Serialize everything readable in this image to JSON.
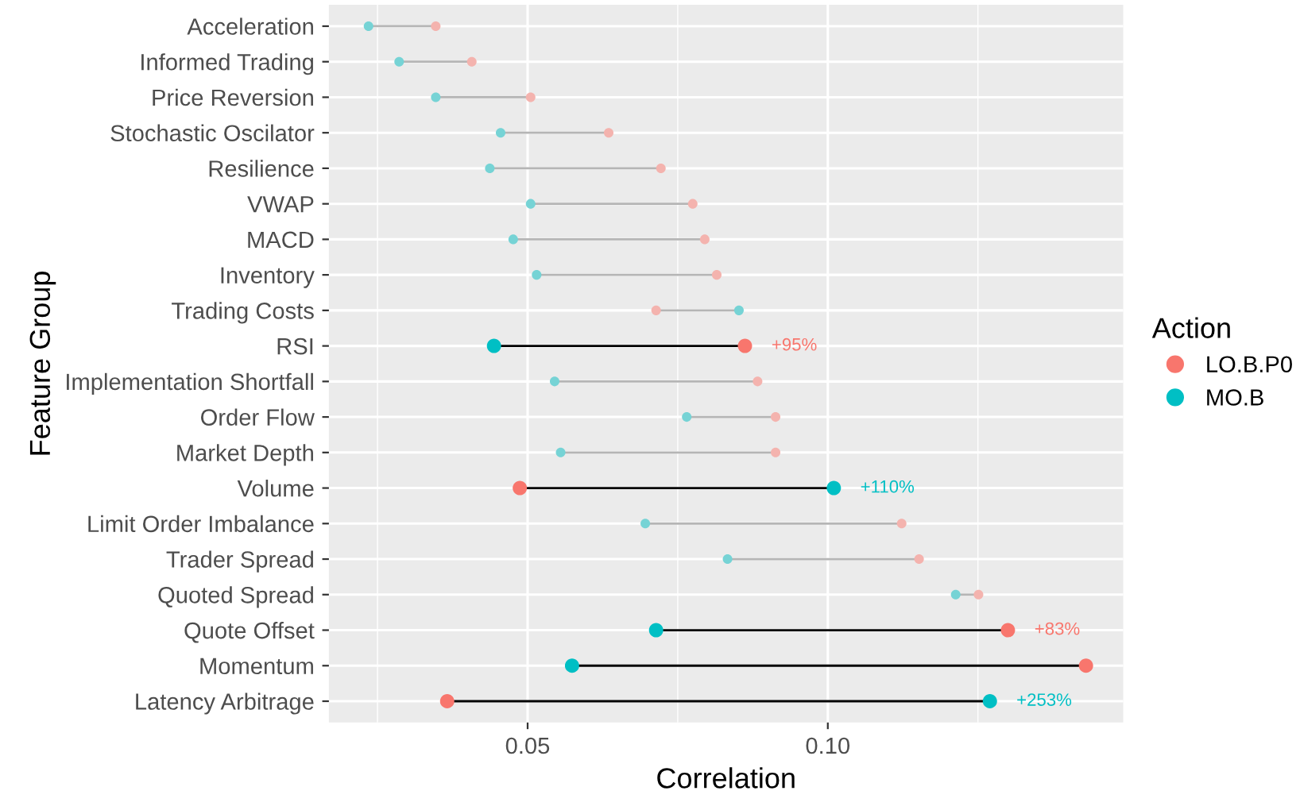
{
  "chart_data": {
    "type": "scatter",
    "xlabel": "Correlation",
    "ylabel": "Feature Group",
    "legend_title": "Action",
    "legend": "right",
    "grid": true,
    "marker": "circle",
    "orientation": "horizontal",
    "categories": [
      "Acceleration",
      "Informed Trading",
      "Price Reversion",
      "Stochastic Oscilator",
      "Resilience",
      "VWAP",
      "MACD",
      "Inventory",
      "Trading Costs",
      "RSI",
      "Implementation Shortfall",
      "Order Flow",
      "Market Depth",
      "Volume",
      "Limit Order Imbalance",
      "Trader Spread",
      "Quoted Spread",
      "Quote Offset",
      "Momentum",
      "Latency Arbitrage"
    ],
    "series": [
      {
        "name": "LO.B.P0",
        "color": "#f8766d",
        "values": [
          0.0347,
          0.0407,
          0.0505,
          0.0635,
          0.0722,
          0.0775,
          0.0795,
          0.0815,
          0.0714,
          0.0862,
          0.0883,
          0.0913,
          0.0913,
          0.0487,
          0.1123,
          0.1152,
          0.1251,
          0.13,
          0.143,
          0.0366
        ],
        "sizes": [
          0.45,
          0.45,
          0.45,
          0.45,
          0.45,
          0.45,
          0.45,
          0.45,
          0.45,
          1,
          0.45,
          0.45,
          0.45,
          1,
          0.45,
          0.45,
          0.45,
          1,
          1,
          1
        ],
        "colors": [
          "#f4b3ae",
          "#f4b3ae",
          "#f4b3ae",
          "#f4b3ae",
          "#f4b3ae",
          "#f4b3ae",
          "#f4b3ae",
          "#f4b3ae",
          "#f4b3ae",
          "#f8766d",
          "#f4b3ae",
          "#f4b3ae",
          "#f4b3ae",
          "#f8766d",
          "#f4b3ae",
          "#f4b3ae",
          "#f4b3ae",
          "#f8766d",
          "#f8766d",
          "#f8766d"
        ]
      },
      {
        "name": "MO.B",
        "color": "#00bfc4",
        "values": [
          0.0235,
          0.0286,
          0.0347,
          0.0455,
          0.0437,
          0.0505,
          0.0476,
          0.0515,
          0.0852,
          0.0444,
          0.0545,
          0.0765,
          0.0555,
          0.101,
          0.0696,
          0.0833,
          0.1213,
          0.0714,
          0.0574,
          0.127
        ],
        "sizes": [
          0.45,
          0.45,
          0.45,
          0.45,
          0.45,
          0.45,
          0.45,
          0.45,
          0.45,
          1,
          0.45,
          0.45,
          0.45,
          1,
          0.45,
          0.45,
          0.45,
          1,
          1,
          1
        ],
        "colors": [
          "#76d3d5",
          "#76d3d5",
          "#76d3d5",
          "#76d3d5",
          "#76d3d5",
          "#76d3d5",
          "#76d3d5",
          "#76d3d5",
          "#76d3d5",
          "#00bfc4",
          "#76d3d5",
          "#76d3d5",
          "#76d3d5",
          "#00bfc4",
          "#76d3d5",
          "#76d3d5",
          "#76d3d5",
          "#00bfc4",
          "#00bfc4",
          "#00bfc4"
        ]
      }
    ],
    "xlim": [
      0.0169,
      0.1492
    ],
    "xticks": [
      {
        "value": 0.05,
        "label": "0.05"
      },
      {
        "value": 0.1,
        "label": "0.10"
      }
    ],
    "annotations": [
      {
        "text": "+95%",
        "x": 0.0862,
        "y": "RSI"
      },
      {
        "text": "+110%",
        "x": 0.101,
        "y": "Volume"
      },
      {
        "text": "+83%",
        "x": 0.13,
        "y": "Quote Offset"
      },
      {
        "text": "+253%",
        "x": 0.127,
        "y": "Latency Arbitrage"
      }
    ]
  }
}
